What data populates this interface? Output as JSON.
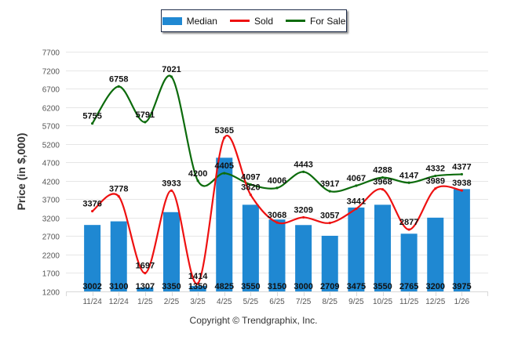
{
  "chart_data": {
    "type": "bar",
    "title": "",
    "xlabel": "",
    "ylabel": "Price (in $,000)",
    "ylim": [
      1200,
      7700
    ],
    "yticks": [
      1200,
      1700,
      2200,
      2700,
      3200,
      3700,
      4200,
      4700,
      5200,
      5700,
      6200,
      6700,
      7200,
      7700
    ],
    "grid": true,
    "legend_position": "top-center",
    "categories": [
      "11/24",
      "12/24",
      "1/25",
      "2/25",
      "3/25",
      "4/25",
      "5/25",
      "6/25",
      "7/25",
      "8/25",
      "9/25",
      "10/25",
      "11/25",
      "12/25",
      "1/26"
    ],
    "series": [
      {
        "name": "Median",
        "type": "bar",
        "color": "#1f88d2",
        "values": [
          3002,
          3100,
          1307,
          3350,
          1350,
          4825,
          3550,
          3150,
          3000,
          2709,
          3475,
          3550,
          2765,
          3200,
          3975
        ]
      },
      {
        "name": "Sold",
        "type": "line",
        "color": "#ee1111",
        "values": [
          3376,
          3778,
          1697,
          3933,
          1414,
          5365,
          3820,
          3068,
          3209,
          3057,
          3441,
          3968,
          2877,
          3989,
          3938
        ]
      },
      {
        "name": "For Sale",
        "type": "line",
        "color": "#0c6b0c",
        "values": [
          5755,
          6758,
          5791,
          7021,
          4200,
          4405,
          4097,
          4006,
          4443,
          3917,
          4067,
          4288,
          4147,
          4332,
          4377
        ]
      }
    ]
  },
  "legend": {
    "median_label": "Median",
    "sold_label": "Sold",
    "for_sale_label": "For Sale"
  },
  "footer": {
    "copyright": "Copyright © Trendgraphix, Inc."
  }
}
